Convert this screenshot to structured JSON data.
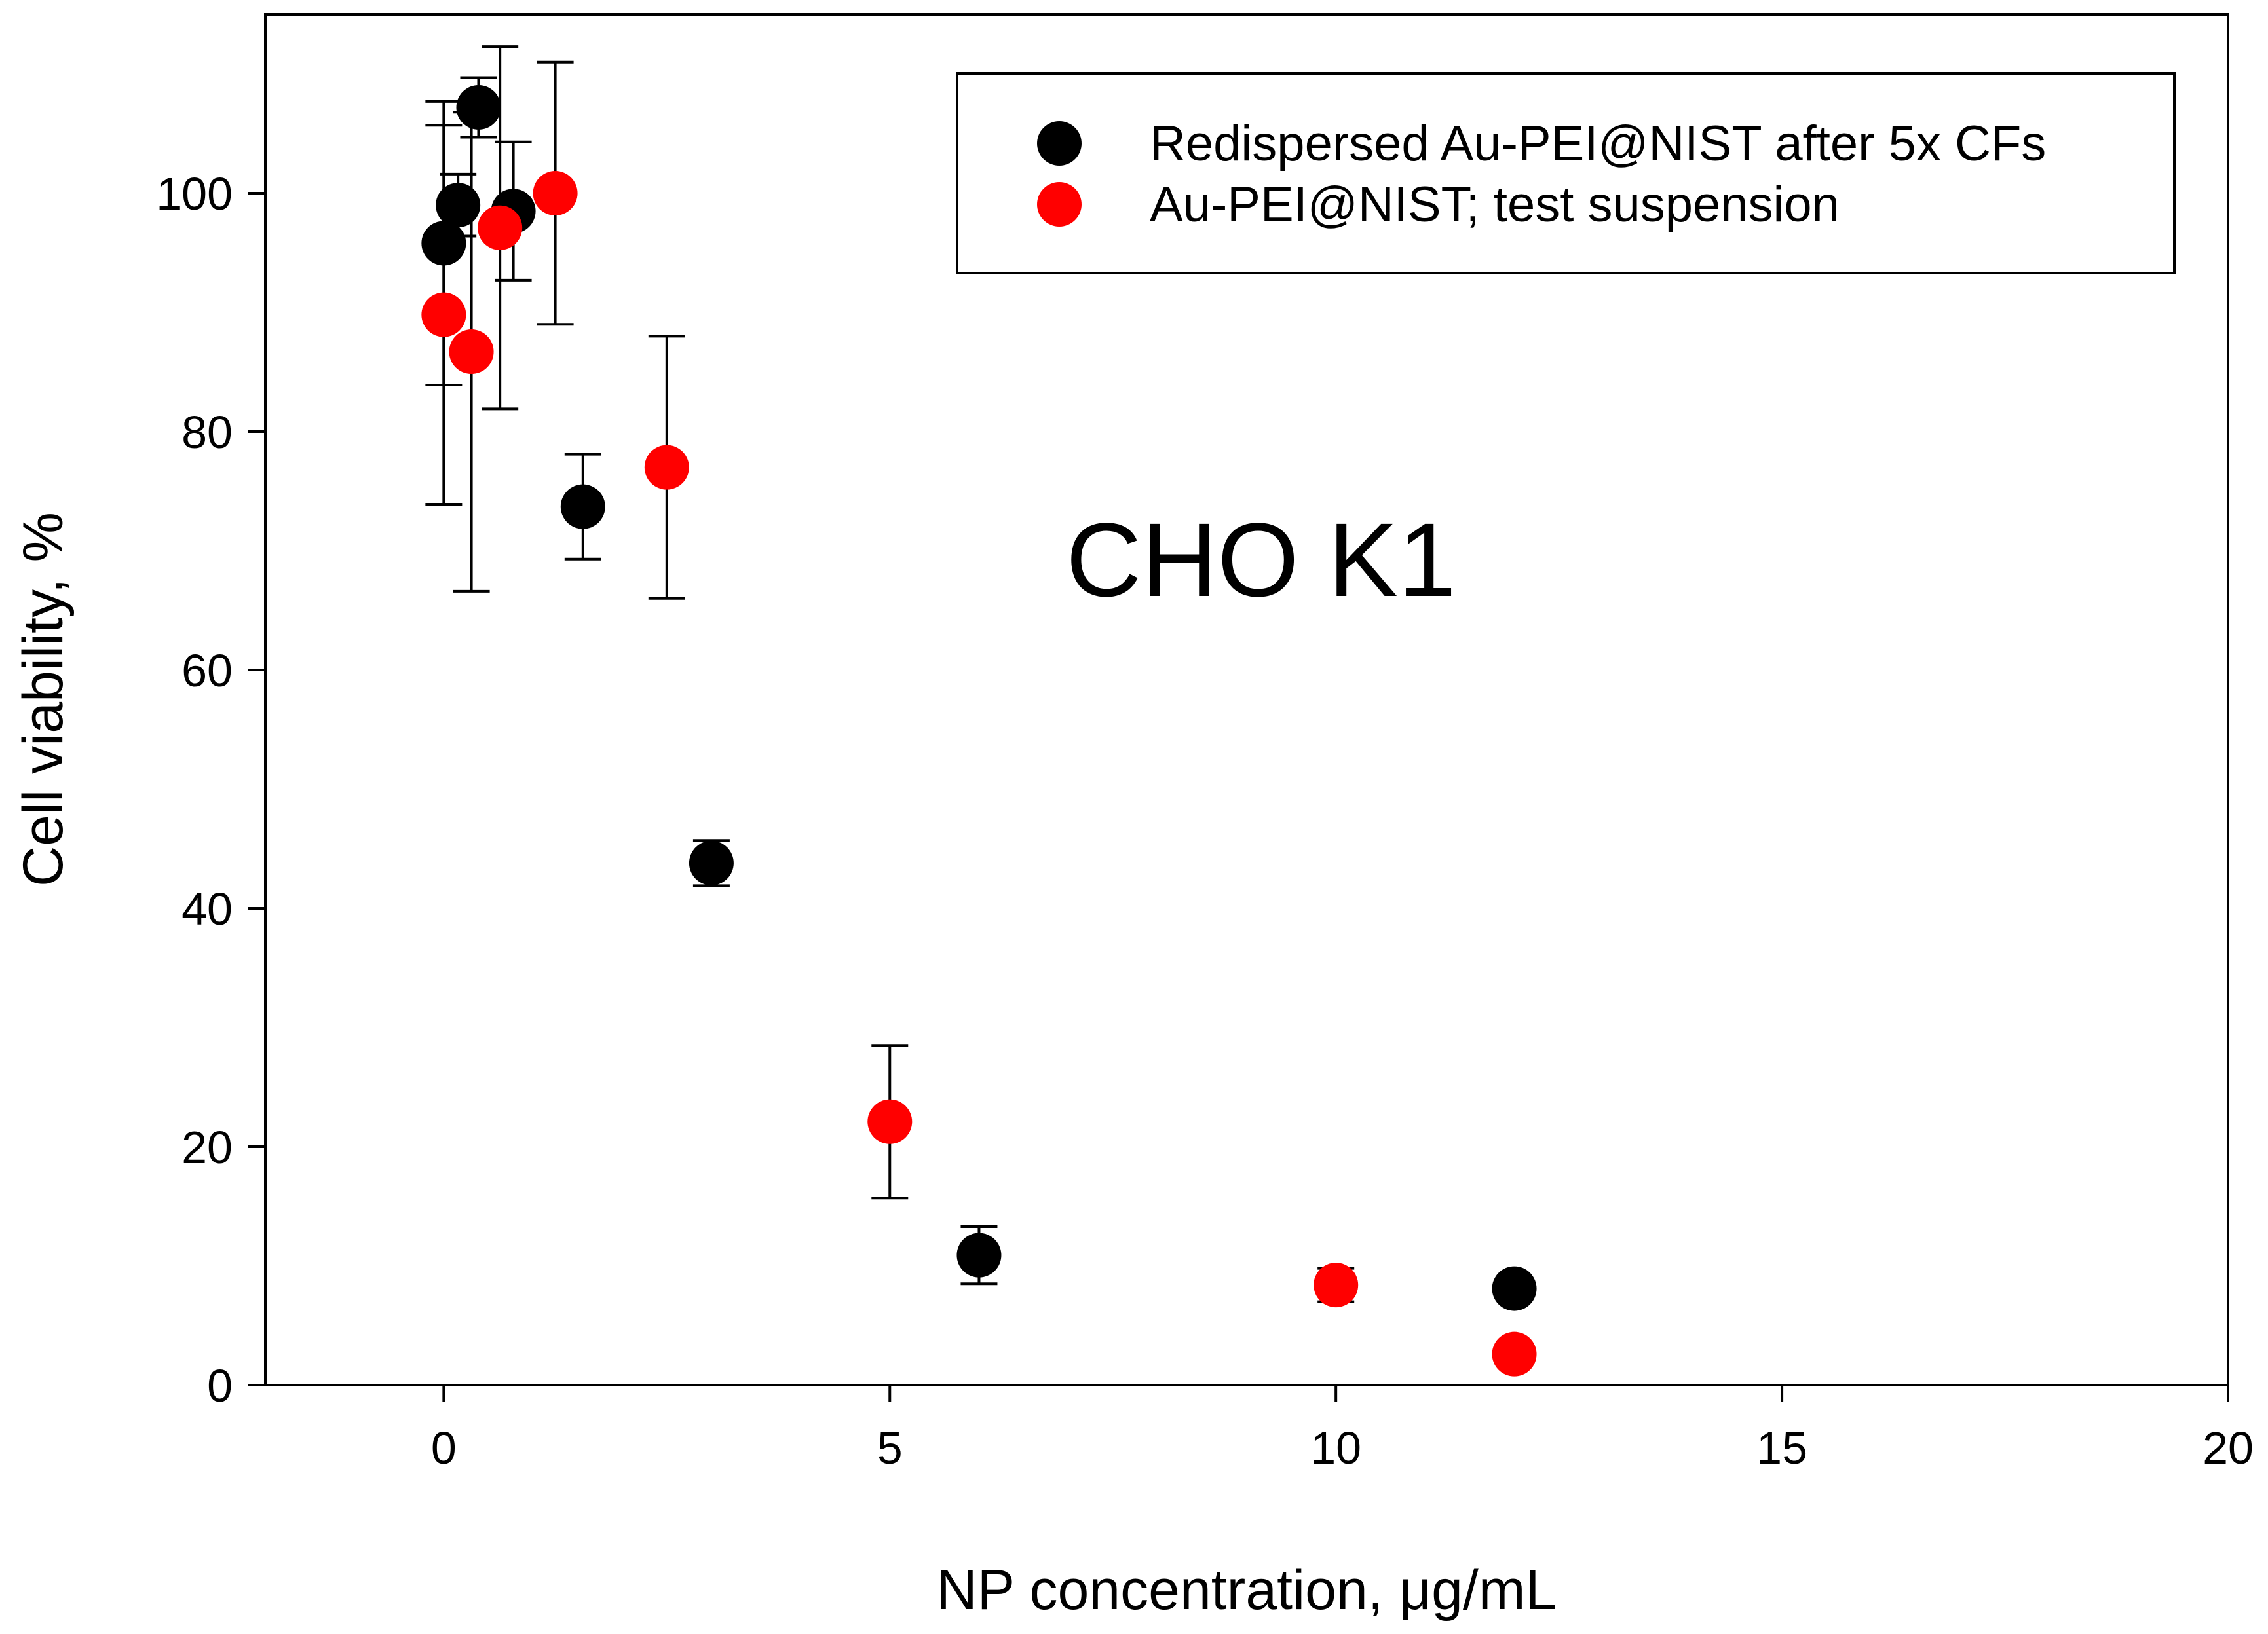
{
  "chart_data": {
    "type": "scatter",
    "title": "",
    "annotation": "CHO K1",
    "xlabel": "NP concentration, μg/mL",
    "ylabel": "Cell viability, %",
    "xlim": [
      -2,
      20
    ],
    "ylim": [
      0,
      115
    ],
    "xticks": [
      0,
      5,
      10,
      15,
      20
    ],
    "yticks": [
      0,
      20,
      40,
      60,
      80,
      100
    ],
    "xtick_labels": [
      "0",
      "5",
      "10",
      "15",
      "20"
    ],
    "ytick_labels": [
      "0",
      "20",
      "40",
      "60",
      "80",
      "100"
    ],
    "grid": false,
    "legend_position": "top-right",
    "series": [
      {
        "name": "Redispersed Au-PEI@NIST after 5x CFs",
        "color": "#000000",
        "points": [
          {
            "x": 0.0,
            "y": 95.8,
            "err": 11.9
          },
          {
            "x": 0.16,
            "y": 99.0,
            "err": 2.6
          },
          {
            "x": 0.39,
            "y": 107.2,
            "err": 2.5
          },
          {
            "x": 0.78,
            "y": 98.5,
            "err": 5.8
          },
          {
            "x": 1.56,
            "y": 73.7,
            "err": 4.4
          },
          {
            "x": 3.0,
            "y": 43.8,
            "err": 1.9
          },
          {
            "x": 6.0,
            "y": 10.9,
            "err": 2.4
          },
          {
            "x": 12.0,
            "y": 8.1,
            "err": 0
          }
        ]
      },
      {
        "name": "Au-PEI@NIST; test suspension",
        "color": "#ff0000",
        "points": [
          {
            "x": 0.0,
            "y": 89.8,
            "err": 15.9
          },
          {
            "x": 0.31,
            "y": 86.7,
            "err": 20.1
          },
          {
            "x": 0.63,
            "y": 97.1,
            "err": 15.2
          },
          {
            "x": 1.25,
            "y": 100.0,
            "err": 11.0
          },
          {
            "x": 2.5,
            "y": 77.0,
            "err": 11.0
          },
          {
            "x": 5.0,
            "y": 22.1,
            "err": 6.4
          },
          {
            "x": 10.0,
            "y": 8.4,
            "err": 1.4
          },
          {
            "x": 12.0,
            "y": 2.6,
            "err": 0
          }
        ]
      }
    ]
  }
}
